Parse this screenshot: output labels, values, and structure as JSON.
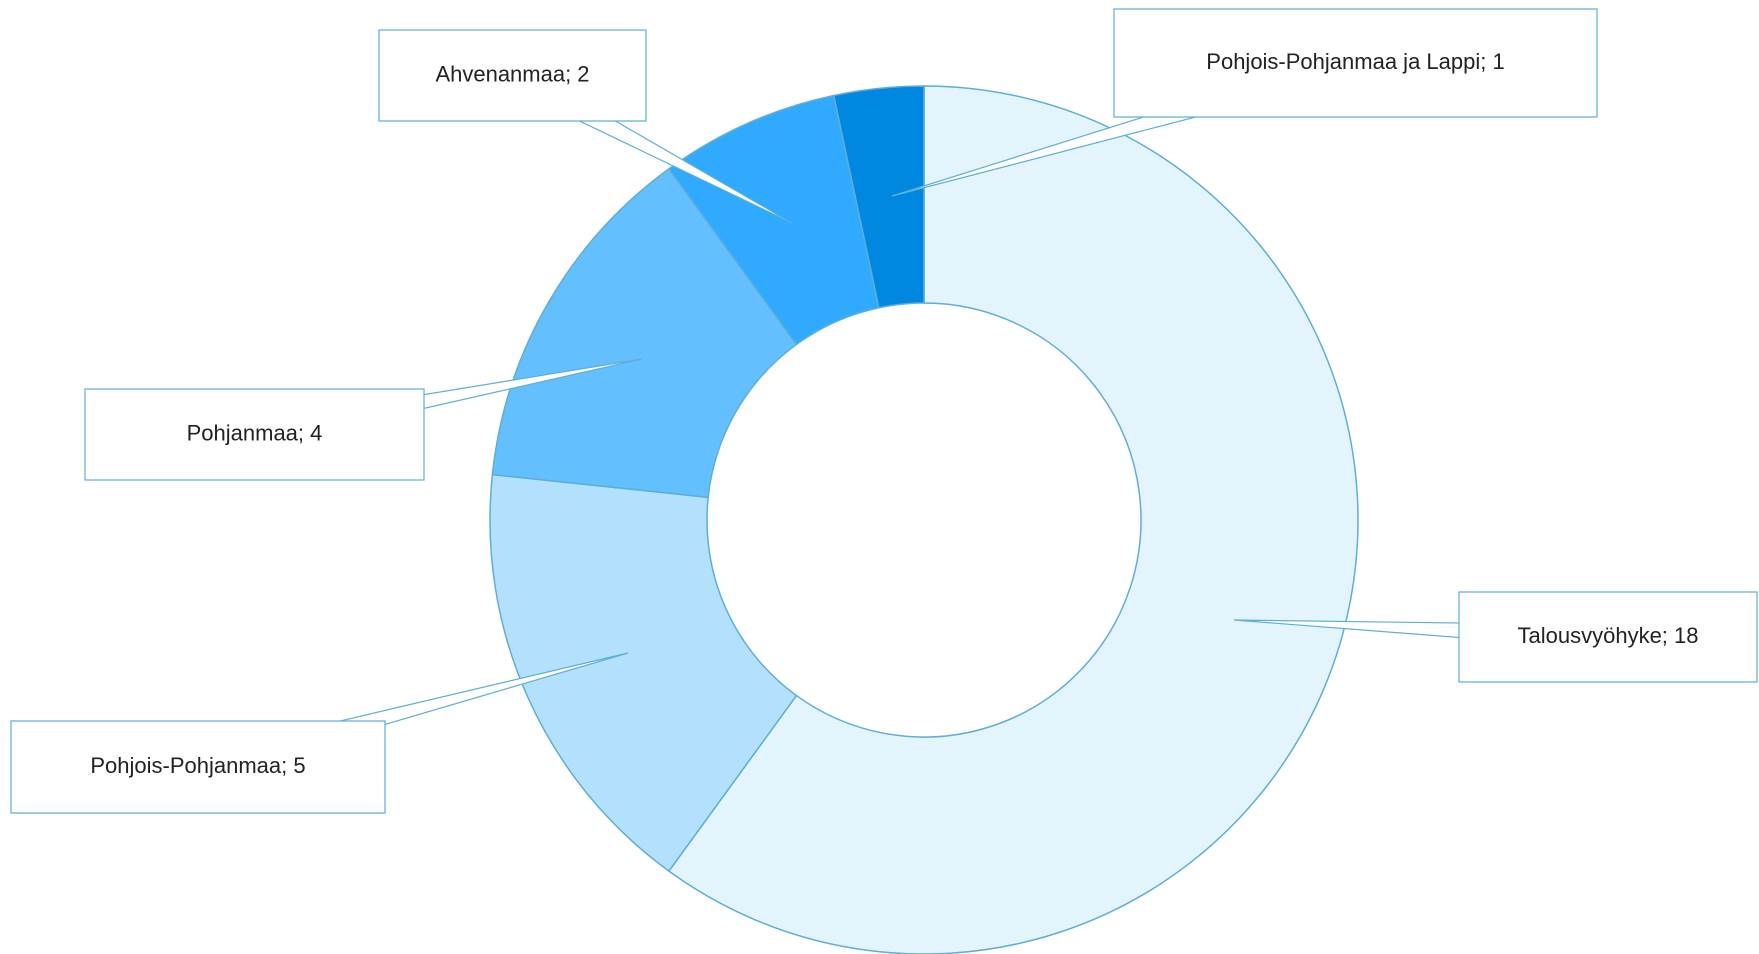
{
  "chart_data": {
    "type": "donut",
    "values": [
      18,
      5,
      4,
      2,
      1
    ],
    "value_labels": [
      "Talousvyöhyke; 18",
      "Pohjois-Pohjanmaa; 5",
      "Pohjanmaa; 4",
      "Ahvenanmaa; 2",
      "Pohjois-Pohjanmaa ja Lappi; 1"
    ],
    "colors": [
      "#e4f4fd",
      "#b3e0fd",
      "#63bffd",
      "#30aaff",
      "#0088e0"
    ]
  }
}
